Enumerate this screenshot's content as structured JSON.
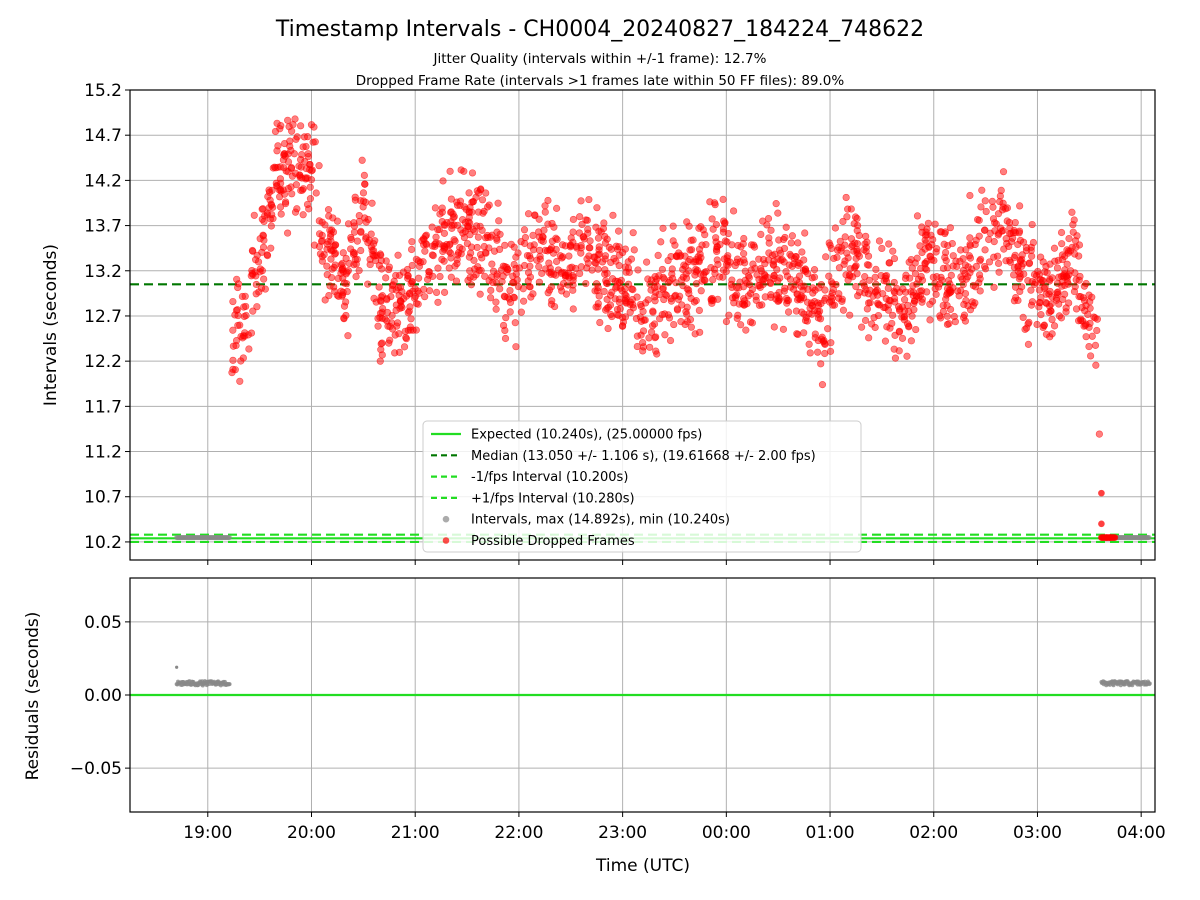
{
  "chart_data": [
    {
      "type": "scatter",
      "panel": "top",
      "title": "Timestamp Intervals - CH0004_20240827_184224_748622",
      "subtitle_lines": [
        "Jitter Quality (intervals within +/-1 frame): 12.7%",
        "Dropped Frame Rate (intervals >1 frames late within 50 FF files): 89.0%"
      ],
      "ylabel": "Intervals (seconds)",
      "ylim": [
        10.0,
        15.2
      ],
      "yticks": [
        10.2,
        10.7,
        11.2,
        11.7,
        12.2,
        12.7,
        13.2,
        13.7,
        14.2,
        14.7,
        15.2
      ],
      "ytick_labels": [
        "10.2",
        "10.7",
        "11.2",
        "11.7",
        "12.2",
        "12.7",
        "13.2",
        "13.7",
        "14.2",
        "14.7",
        "15.2"
      ],
      "grid": true,
      "reference_lines": [
        {
          "name": "Expected (10.240s), (25.00000 fps)",
          "y": 10.24,
          "style": "solid",
          "color": "#22dd22"
        },
        {
          "name": "Median (13.050 +/- 1.106 s), (19.61668 +/- 2.00 fps)",
          "y": 13.05,
          "style": "dashed",
          "color": "#007700"
        },
        {
          "name": "-1/fps Interval (10.200s)",
          "y": 10.2,
          "style": "dashed",
          "color": "#22dd22"
        },
        {
          "name": "+1/fps Interval (10.280s)",
          "y": 10.28,
          "style": "dashed",
          "color": "#22dd22"
        }
      ],
      "scatter_series": [
        {
          "name": "Intervals, max (14.892s), min (10.240s)",
          "color": "#888888",
          "segments": [
            {
              "x_start": "18:42",
              "x_end": "19:13",
              "y": 10.248
            },
            {
              "x_start": "03:37",
              "x_end": "04:05",
              "y": 10.248
            }
          ]
        },
        {
          "name": "Possible Dropped Frames",
          "color": "#ff0000",
          "description_note_excluded": true,
          "trend": [
            [
              "19:13",
              12.3
            ],
            [
              "19:20",
              12.7
            ],
            [
              "19:30",
              13.3
            ],
            [
              "19:40",
              14.2
            ],
            [
              "19:50",
              14.4
            ],
            [
              "20:00",
              14.3
            ],
            [
              "20:10",
              13.3
            ],
            [
              "20:20",
              13.0
            ],
            [
              "20:30",
              14.0
            ],
            [
              "20:40",
              12.8
            ],
            [
              "20:55",
              12.8
            ],
            [
              "21:10",
              13.5
            ],
            [
              "21:25",
              13.7
            ],
            [
              "21:40",
              13.5
            ],
            [
              "21:55",
              13.0
            ],
            [
              "22:10",
              13.4
            ],
            [
              "22:25",
              13.3
            ],
            [
              "22:40",
              13.5
            ],
            [
              "22:55",
              13.1
            ],
            [
              "23:10",
              12.8
            ],
            [
              "23:25",
              13.0
            ],
            [
              "23:40",
              13.2
            ],
            [
              "23:55",
              13.4
            ],
            [
              "00:10",
              13.0
            ],
            [
              "00:25",
              13.3
            ],
            [
              "00:40",
              13.1
            ],
            [
              "00:55",
              12.7
            ],
            [
              "01:10",
              13.4
            ],
            [
              "01:25",
              13.0
            ],
            [
              "01:40",
              12.8
            ],
            [
              "01:55",
              13.3
            ],
            [
              "02:10",
              13.0
            ],
            [
              "02:25",
              13.3
            ],
            [
              "02:40",
              13.8
            ],
            [
              "02:55",
              13.1
            ],
            [
              "03:10",
              12.9
            ],
            [
              "03:20",
              13.3
            ],
            [
              "03:30",
              12.6
            ],
            [
              "03:36",
              12.0
            ]
          ],
          "spread": 0.5,
          "extra_points": [
            [
              "03:37",
              10.74
            ],
            [
              "03:37",
              10.4
            ],
            [
              "03:40",
              10.248
            ],
            [
              "03:42",
              10.248
            ]
          ]
        }
      ],
      "legend_entries": [
        {
          "label": "Expected (10.240s), (25.00000 fps)",
          "kind": "solid-line",
          "color": "#22dd22"
        },
        {
          "label": "Median (13.050 +/- 1.106 s), (19.61668 +/- 2.00 fps)",
          "kind": "dashed-line",
          "color": "#007700"
        },
        {
          "label": "-1/fps Interval (10.200s)",
          "kind": "dashed-line",
          "color": "#22dd22"
        },
        {
          "label": "+1/fps Interval (10.280s)",
          "kind": "dashed-line",
          "color": "#22dd22"
        },
        {
          "label": "Intervals, max (14.892s), min (10.240s)",
          "kind": "marker",
          "color": "#888888"
        },
        {
          "label": "Possible Dropped Frames",
          "kind": "marker",
          "color": "#ff0000"
        }
      ],
      "legend_position": "lower-center"
    },
    {
      "type": "scatter",
      "panel": "bottom",
      "ylabel": "Residuals (seconds)",
      "xlabel": "Time (UTC)",
      "ylim": [
        -0.08,
        0.08
      ],
      "yticks": [
        -0.05,
        0.0,
        0.05
      ],
      "ytick_labels": [
        "−0.05",
        "0.00",
        "0.05"
      ],
      "zero_line_color": "#22dd22",
      "grid": true,
      "residual_segments": [
        {
          "x_start": "18:42",
          "x_end": "19:13",
          "y": 0.008,
          "color": "#888888"
        },
        {
          "x_start": "03:37",
          "x_end": "04:05",
          "y": 0.008,
          "color": "#888888"
        }
      ],
      "outlier_points": [
        [
          "18:42",
          0.019
        ]
      ]
    }
  ],
  "x_axis": {
    "range_hours_from_midnight_prev_day": [
      "18:15",
      "04:08"
    ],
    "tick_labels": [
      "19:00",
      "20:00",
      "21:00",
      "22:00",
      "23:00",
      "00:00",
      "01:00",
      "02:00",
      "03:00",
      "04:00"
    ]
  }
}
